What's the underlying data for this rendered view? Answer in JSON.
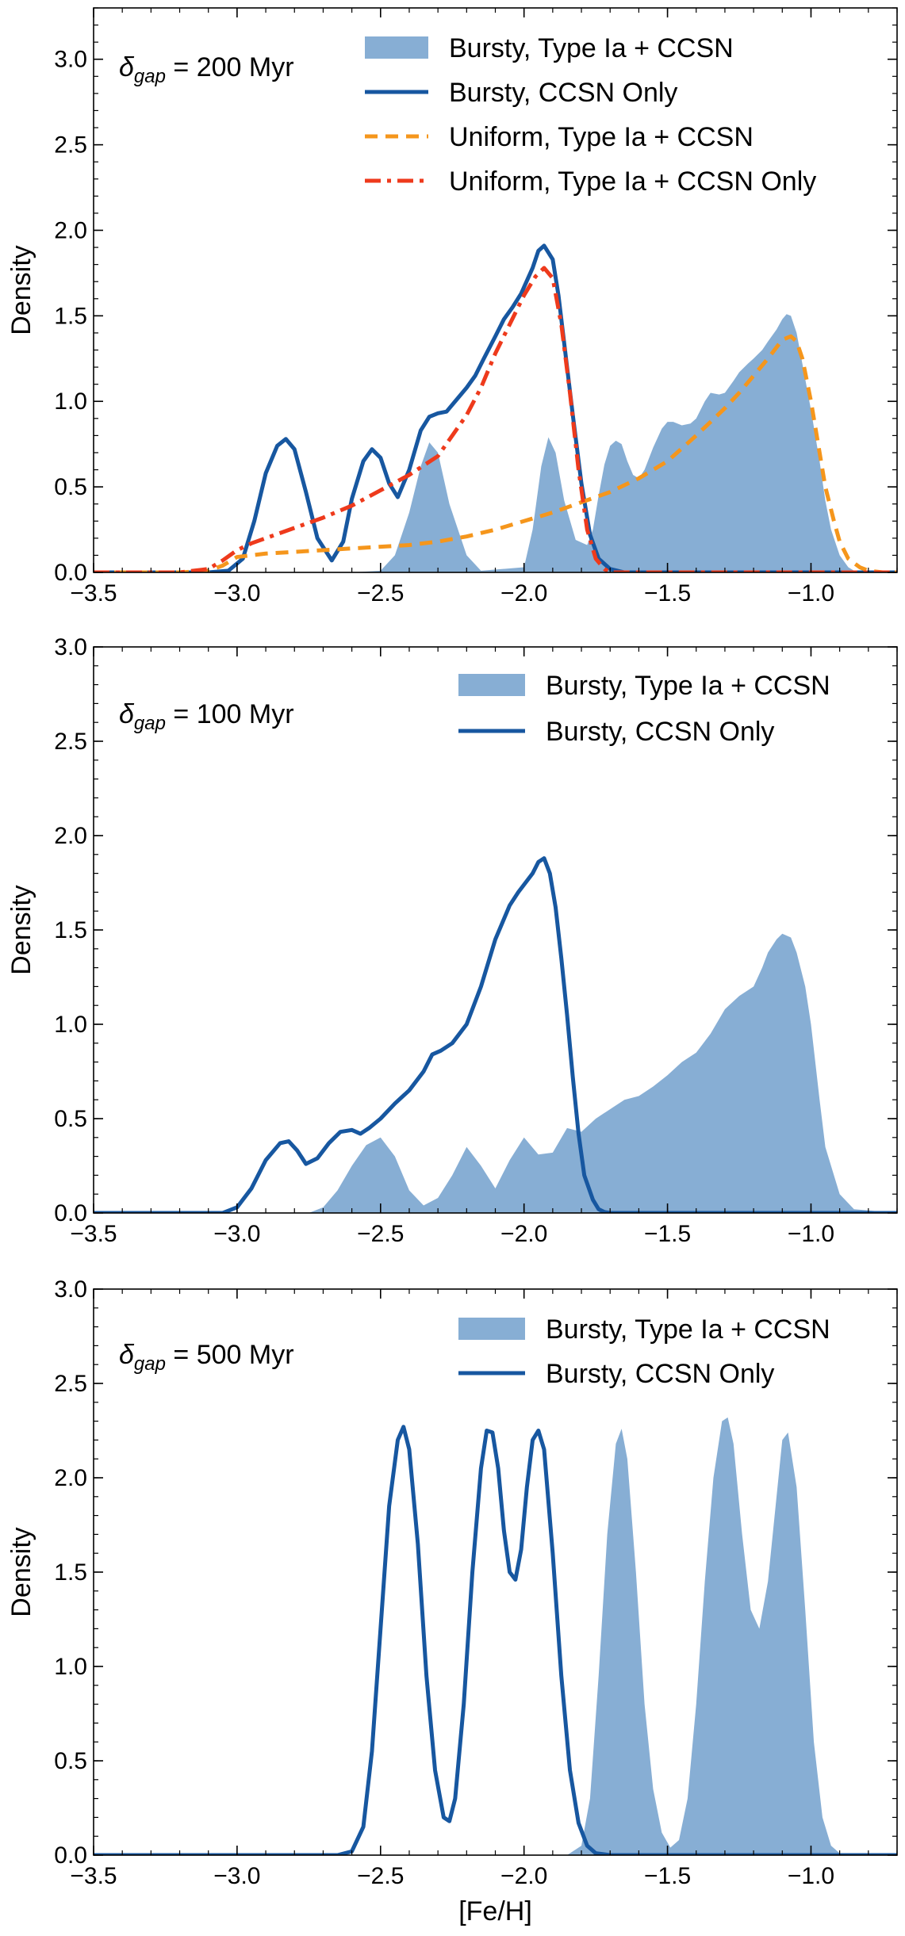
{
  "colors": {
    "fill": "#87aed4",
    "bursty_line": "#1757a0",
    "uniform_ia": "#f5961c",
    "uniform_ccsn": "#ee3a1c"
  },
  "chart_data": [
    {
      "type": "area",
      "annotation": {
        "symbol": "δ",
        "sub": "gap",
        "text": " = 200 Myr"
      },
      "xlabel": "",
      "ylabel": "Density",
      "xlim": [
        -3.5,
        -0.7
      ],
      "ylim": [
        0,
        3.3
      ],
      "xticks": [
        -3.5,
        -3.0,
        -2.5,
        -2.0,
        -1.5,
        -1.0
      ],
      "xtick_labels": [
        "−3.5",
        "−3.0",
        "−2.5",
        "−2.0",
        "−1.5",
        "−1.0"
      ],
      "yticks": [
        0.0,
        0.5,
        1.0,
        1.5,
        2.0,
        2.5,
        3.0
      ],
      "ytick_labels": [
        "0.0",
        "0.5",
        "1.0",
        "1.5",
        "2.0",
        "2.5",
        "3.0"
      ],
      "legend": [
        "Bursty, Type Ia + CCSN",
        "Bursty, CCSN Only",
        "Uniform, Type Ia + CCSN",
        "Uniform, Type Ia + CCSN Only"
      ],
      "series": [
        {
          "name": "Bursty, Type Ia + CCSN",
          "style": "fill",
          "x": [
            -3.5,
            -2.6,
            -2.5,
            -2.45,
            -2.4,
            -2.36,
            -2.33,
            -2.3,
            -2.26,
            -2.2,
            -2.15,
            -2.0,
            -1.97,
            -1.94,
            -1.915,
            -1.89,
            -1.86,
            -1.82,
            -1.78,
            -1.76,
            -1.74,
            -1.72,
            -1.7,
            -1.68,
            -1.66,
            -1.64,
            -1.62,
            -1.6,
            -1.58,
            -1.55,
            -1.52,
            -1.5,
            -1.48,
            -1.45,
            -1.42,
            -1.4,
            -1.37,
            -1.35,
            -1.32,
            -1.3,
            -1.27,
            -1.25,
            -1.22,
            -1.2,
            -1.17,
            -1.15,
            -1.12,
            -1.1,
            -1.085,
            -1.07,
            -1.05,
            -1.03,
            -1.0,
            -0.97,
            -0.95,
            -0.93,
            -0.9,
            -0.87,
            -0.85,
            -0.7
          ],
          "y": [
            0,
            0,
            0.01,
            0.1,
            0.35,
            0.62,
            0.76,
            0.7,
            0.4,
            0.1,
            0.01,
            0.03,
            0.25,
            0.62,
            0.79,
            0.7,
            0.42,
            0.19,
            0.16,
            0.25,
            0.45,
            0.63,
            0.74,
            0.77,
            0.75,
            0.65,
            0.57,
            0.55,
            0.6,
            0.73,
            0.84,
            0.88,
            0.88,
            0.86,
            0.87,
            0.9,
            1.0,
            1.05,
            1.04,
            1.05,
            1.12,
            1.17,
            1.22,
            1.25,
            1.3,
            1.35,
            1.42,
            1.48,
            1.51,
            1.5,
            1.4,
            1.22,
            0.95,
            0.65,
            0.42,
            0.25,
            0.1,
            0.03,
            0.01,
            0
          ]
        },
        {
          "name": "Bursty, CCSN Only",
          "style": "solid",
          "color": "#1757a0",
          "x": [
            -3.5,
            -3.1,
            -3.03,
            -2.98,
            -2.94,
            -2.9,
            -2.86,
            -2.83,
            -2.8,
            -2.76,
            -2.72,
            -2.67,
            -2.63,
            -2.6,
            -2.56,
            -2.53,
            -2.5,
            -2.47,
            -2.44,
            -2.4,
            -2.36,
            -2.33,
            -2.3,
            -2.27,
            -2.24,
            -2.2,
            -2.17,
            -2.14,
            -2.1,
            -2.07,
            -2.04,
            -2.01,
            -1.97,
            -1.95,
            -1.93,
            -1.9,
            -1.88,
            -1.86,
            -1.83,
            -1.8,
            -1.77,
            -1.74,
            -1.7,
            -1.65,
            -0.7
          ],
          "y": [
            0,
            0,
            0.01,
            0.08,
            0.3,
            0.58,
            0.74,
            0.78,
            0.72,
            0.47,
            0.2,
            0.07,
            0.18,
            0.43,
            0.65,
            0.72,
            0.67,
            0.52,
            0.44,
            0.6,
            0.83,
            0.91,
            0.93,
            0.94,
            1.0,
            1.08,
            1.15,
            1.25,
            1.38,
            1.48,
            1.55,
            1.63,
            1.78,
            1.88,
            1.91,
            1.83,
            1.62,
            1.34,
            0.92,
            0.52,
            0.22,
            0.08,
            0.02,
            0,
            0
          ]
        },
        {
          "name": "Uniform, Type Ia + CCSN",
          "style": "dashed",
          "color": "#f5961c",
          "x": [
            -3.5,
            -3.2,
            -3.1,
            -3.05,
            -3.0,
            -2.9,
            -2.8,
            -2.7,
            -2.6,
            -2.5,
            -2.4,
            -2.3,
            -2.2,
            -2.1,
            -2.0,
            -1.9,
            -1.8,
            -1.7,
            -1.6,
            -1.5,
            -1.4,
            -1.35,
            -1.3,
            -1.25,
            -1.2,
            -1.15,
            -1.1,
            -1.07,
            -1.05,
            -1.03,
            -1.0,
            -0.97,
            -0.95,
            -0.92,
            -0.9,
            -0.87,
            -0.83,
            -0.8,
            -0.75,
            -0.7
          ],
          "y": [
            0,
            0,
            0.01,
            0.04,
            0.09,
            0.11,
            0.12,
            0.13,
            0.14,
            0.15,
            0.16,
            0.18,
            0.21,
            0.25,
            0.3,
            0.35,
            0.41,
            0.47,
            0.55,
            0.65,
            0.8,
            0.88,
            0.96,
            1.05,
            1.15,
            1.25,
            1.36,
            1.38,
            1.35,
            1.25,
            1.0,
            0.7,
            0.5,
            0.3,
            0.18,
            0.08,
            0.03,
            0.01,
            0,
            0
          ]
        },
        {
          "name": "Uniform, Type Ia + CCSN Only",
          "style": "dashdot",
          "color": "#ee3a1c",
          "x": [
            -3.5,
            -3.2,
            -3.1,
            -3.05,
            -3.0,
            -2.95,
            -2.9,
            -2.8,
            -2.7,
            -2.6,
            -2.5,
            -2.4,
            -2.3,
            -2.25,
            -2.2,
            -2.15,
            -2.1,
            -2.05,
            -2.0,
            -1.96,
            -1.93,
            -1.9,
            -1.87,
            -1.84,
            -1.81,
            -1.78,
            -1.75,
            -1.72,
            -1.7,
            -0.7
          ],
          "y": [
            0,
            0,
            0.02,
            0.07,
            0.13,
            0.17,
            0.2,
            0.26,
            0.32,
            0.39,
            0.48,
            0.57,
            0.68,
            0.8,
            0.92,
            1.08,
            1.28,
            1.45,
            1.62,
            1.73,
            1.78,
            1.72,
            1.45,
            1.05,
            0.6,
            0.25,
            0.08,
            0.02,
            0,
            0
          ]
        }
      ]
    },
    {
      "type": "area",
      "annotation": {
        "symbol": "δ",
        "sub": "gap",
        "text": " = 100 Myr"
      },
      "xlabel": "",
      "ylabel": "Density",
      "xlim": [
        -3.5,
        -0.7
      ],
      "ylim": [
        0,
        3.0
      ],
      "xticks": [
        -3.5,
        -3.0,
        -2.5,
        -2.0,
        -1.5,
        -1.0
      ],
      "xtick_labels": [
        "−3.5",
        "−3.0",
        "−2.5",
        "−2.0",
        "−1.5",
        "−1.0"
      ],
      "yticks": [
        0.0,
        0.5,
        1.0,
        1.5,
        2.0,
        2.5,
        3.0
      ],
      "ytick_labels": [
        "0.0",
        "0.5",
        "1.0",
        "1.5",
        "2.0",
        "2.5",
        "3.0"
      ],
      "legend": [
        "Bursty, Type Ia + CCSN",
        "Bursty, CCSN Only"
      ],
      "series": [
        {
          "name": "Bursty, Type Ia + CCSN",
          "style": "fill",
          "x": [
            -3.5,
            -2.75,
            -2.7,
            -2.65,
            -2.6,
            -2.55,
            -2.5,
            -2.45,
            -2.4,
            -2.35,
            -2.3,
            -2.25,
            -2.2,
            -2.15,
            -2.1,
            -2.05,
            -2.0,
            -1.95,
            -1.9,
            -1.85,
            -1.8,
            -1.75,
            -1.7,
            -1.65,
            -1.6,
            -1.55,
            -1.5,
            -1.45,
            -1.4,
            -1.35,
            -1.3,
            -1.25,
            -1.2,
            -1.17,
            -1.15,
            -1.12,
            -1.1,
            -1.07,
            -1.05,
            -1.02,
            -1.0,
            -0.97,
            -0.95,
            -0.9,
            -0.85,
            -0.7
          ],
          "y": [
            0,
            0,
            0.03,
            0.12,
            0.25,
            0.36,
            0.4,
            0.3,
            0.12,
            0.04,
            0.08,
            0.2,
            0.35,
            0.25,
            0.13,
            0.28,
            0.4,
            0.31,
            0.32,
            0.45,
            0.43,
            0.5,
            0.55,
            0.6,
            0.62,
            0.67,
            0.73,
            0.8,
            0.85,
            0.95,
            1.08,
            1.15,
            1.2,
            1.3,
            1.38,
            1.45,
            1.48,
            1.46,
            1.38,
            1.2,
            1.0,
            0.6,
            0.35,
            0.1,
            0.02,
            0
          ]
        },
        {
          "name": "Bursty, CCSN Only",
          "style": "solid",
          "color": "#1757a0",
          "x": [
            -3.5,
            -3.05,
            -3.0,
            -2.95,
            -2.9,
            -2.85,
            -2.82,
            -2.79,
            -2.76,
            -2.72,
            -2.68,
            -2.64,
            -2.6,
            -2.57,
            -2.54,
            -2.5,
            -2.45,
            -2.4,
            -2.35,
            -2.32,
            -2.29,
            -2.25,
            -2.2,
            -2.15,
            -2.1,
            -2.05,
            -2.02,
            -2.0,
            -1.97,
            -1.95,
            -1.93,
            -1.91,
            -1.89,
            -1.87,
            -1.85,
            -1.83,
            -1.81,
            -1.79,
            -1.76,
            -1.74,
            -1.72,
            -1.7,
            -0.7
          ],
          "y": [
            0,
            0,
            0.03,
            0.13,
            0.28,
            0.37,
            0.38,
            0.33,
            0.26,
            0.29,
            0.37,
            0.43,
            0.44,
            0.42,
            0.45,
            0.5,
            0.58,
            0.65,
            0.75,
            0.84,
            0.86,
            0.9,
            1.0,
            1.2,
            1.45,
            1.63,
            1.7,
            1.74,
            1.8,
            1.86,
            1.88,
            1.8,
            1.62,
            1.35,
            1.05,
            0.72,
            0.42,
            0.2,
            0.07,
            0.02,
            0.005,
            0,
            0
          ]
        }
      ]
    },
    {
      "type": "area",
      "annotation": {
        "symbol": "δ",
        "sub": "gap",
        "text": " = 500 Myr"
      },
      "xlabel": "[Fe/H]",
      "ylabel": "Density",
      "xlim": [
        -3.5,
        -0.7
      ],
      "ylim": [
        0,
        3.0
      ],
      "xticks": [
        -3.5,
        -3.0,
        -2.5,
        -2.0,
        -1.5,
        -1.0
      ],
      "xtick_labels": [
        "−3.5",
        "−3.0",
        "−2.5",
        "−2.0",
        "−1.5",
        "−1.0"
      ],
      "yticks": [
        0.0,
        0.5,
        1.0,
        1.5,
        2.0,
        2.5,
        3.0
      ],
      "ytick_labels": [
        "0.0",
        "0.5",
        "1.0",
        "1.5",
        "2.0",
        "2.5",
        "3.0"
      ],
      "legend": [
        "Bursty, Type Ia + CCSN",
        "Bursty, CCSN Only"
      ],
      "series": [
        {
          "name": "Bursty, Type Ia + CCSN",
          "style": "fill",
          "x": [
            -3.5,
            -1.85,
            -1.8,
            -1.77,
            -1.74,
            -1.71,
            -1.68,
            -1.66,
            -1.64,
            -1.61,
            -1.58,
            -1.55,
            -1.52,
            -1.49,
            -1.46,
            -1.43,
            -1.4,
            -1.37,
            -1.34,
            -1.31,
            -1.29,
            -1.27,
            -1.24,
            -1.21,
            -1.18,
            -1.15,
            -1.12,
            -1.1,
            -1.08,
            -1.05,
            -1.02,
            -0.99,
            -0.96,
            -0.93,
            -0.9,
            -0.7
          ],
          "y": [
            0,
            0,
            0.05,
            0.3,
            0.95,
            1.7,
            2.18,
            2.26,
            2.1,
            1.5,
            0.8,
            0.35,
            0.12,
            0.04,
            0.08,
            0.3,
            0.8,
            1.45,
            2.0,
            2.3,
            2.32,
            2.18,
            1.7,
            1.3,
            1.2,
            1.45,
            1.9,
            2.2,
            2.24,
            1.95,
            1.3,
            0.6,
            0.2,
            0.05,
            0.01,
            0
          ]
        },
        {
          "name": "Bursty, CCSN Only",
          "style": "solid",
          "color": "#1757a0",
          "x": [
            -3.5,
            -2.65,
            -2.6,
            -2.56,
            -2.53,
            -2.5,
            -2.47,
            -2.44,
            -2.42,
            -2.4,
            -2.37,
            -2.34,
            -2.31,
            -2.28,
            -2.26,
            -2.24,
            -2.21,
            -2.18,
            -2.15,
            -2.13,
            -2.11,
            -2.09,
            -2.07,
            -2.05,
            -2.03,
            -2.01,
            -1.99,
            -1.97,
            -1.95,
            -1.93,
            -1.9,
            -1.87,
            -1.84,
            -1.81,
            -1.78,
            -1.75,
            -1.7,
            -0.7
          ],
          "y": [
            0,
            0,
            0.02,
            0.15,
            0.55,
            1.2,
            1.85,
            2.2,
            2.27,
            2.15,
            1.65,
            0.95,
            0.45,
            0.2,
            0.18,
            0.3,
            0.8,
            1.5,
            2.05,
            2.25,
            2.24,
            2.05,
            1.72,
            1.5,
            1.46,
            1.62,
            1.95,
            2.2,
            2.25,
            2.15,
            1.6,
            0.95,
            0.45,
            0.17,
            0.05,
            0.01,
            0,
            0
          ]
        }
      ]
    }
  ]
}
